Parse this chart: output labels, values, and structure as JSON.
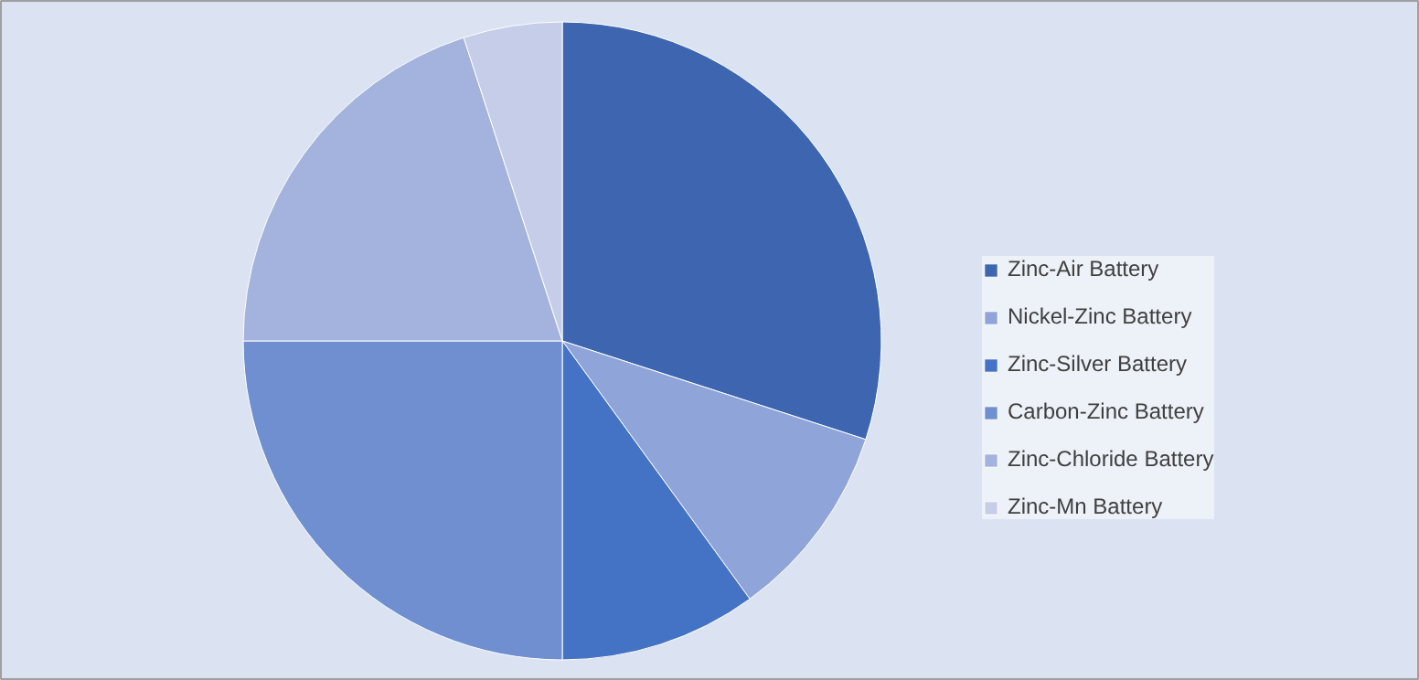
{
  "chart_data": {
    "type": "pie",
    "categories": [
      "Zinc-Air Battery",
      "Nickel-Zinc Battery",
      "Zinc-Silver Battery",
      "Carbon-Zinc Battery",
      "Zinc-Chloride Battery",
      "Zinc-Mn Battery"
    ],
    "values": [
      30,
      10,
      10,
      25,
      20,
      5
    ],
    "colors": [
      "#3e66b0",
      "#8fa4d8",
      "#4472c4",
      "#6f8fd0",
      "#a4b3dd",
      "#c5cde9"
    ],
    "legend": "right"
  }
}
